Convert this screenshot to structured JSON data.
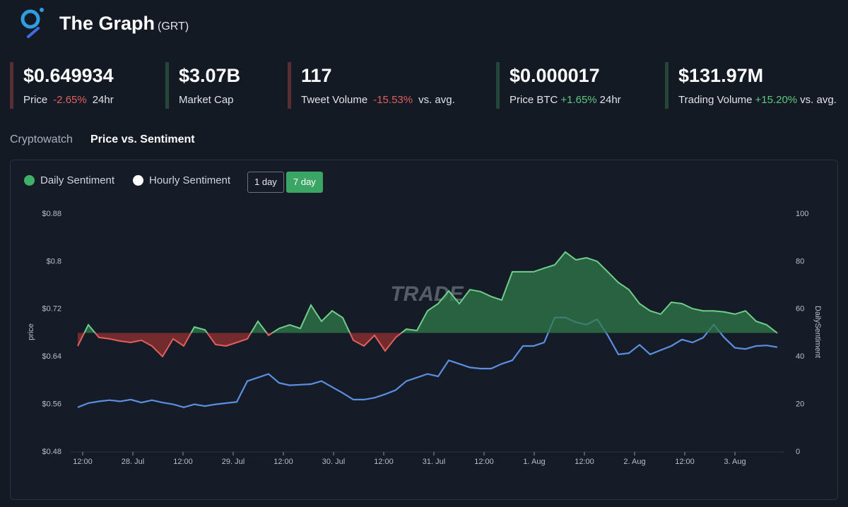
{
  "header": {
    "title": "The Graph",
    "ticker": "(GRT)"
  },
  "stats": [
    {
      "value": "$0.649934",
      "label": "Price",
      "change": "-2.65%",
      "suffix": "24hr",
      "trend": "down"
    },
    {
      "value": "$3.07B",
      "label": "Market Cap",
      "trend": "up"
    },
    {
      "value": "117",
      "label": "Tweet Volume",
      "change": "-15.53%",
      "suffix": "vs. avg.",
      "trend": "down"
    },
    {
      "value": "$0.000017",
      "label": "Price BTC",
      "change": "+1.65%",
      "suffix": "24hr",
      "trend": "up"
    },
    {
      "value": "$131.97M",
      "label": "Trading Volume",
      "change": "+15.20%",
      "suffix": "vs. avg.",
      "trend": "up"
    }
  ],
  "tabs": [
    "Cryptowatch",
    "Price vs. Sentiment"
  ],
  "legend": [
    {
      "name": "Daily Sentiment",
      "color": "#3fb06a"
    },
    {
      "name": "Hourly Sentiment",
      "color": "#ffffff"
    }
  ],
  "range_buttons": [
    "1 day",
    "7 day"
  ],
  "chart_data": {
    "type": "line",
    "watermark": "TRADE",
    "ylabel": "price",
    "y2label": "DailySentiment",
    "xticks": [
      "12:00",
      "28. Jul",
      "12:00",
      "29. Jul",
      "12:00",
      "30. Jul",
      "12:00",
      "31. Jul",
      "12:00",
      "1. Aug",
      "12:00",
      "2. Aug",
      "12:00",
      "3. Aug"
    ],
    "ylim": [
      0.48,
      0.88
    ],
    "yticks": [
      {
        "value": 0.48,
        "label": "$0.48"
      },
      {
        "value": 0.56,
        "label": "$0.56"
      },
      {
        "value": 0.64,
        "label": "$0.64"
      },
      {
        "value": 0.72,
        "label": "$0.72"
      },
      {
        "value": 0.8,
        "label": "$0.8"
      },
      {
        "value": 0.88,
        "label": "$0.88"
      }
    ],
    "y2lim": [
      0,
      100
    ],
    "y2ticks": [
      0,
      20,
      40,
      60,
      80,
      100
    ],
    "series": [
      {
        "color": "#5b8fe0",
        "values": [
          0.555,
          0.562,
          0.565,
          0.567,
          0.565,
          0.568,
          0.563,
          0.567,
          0.563,
          0.56,
          0.555,
          0.56,
          0.557,
          0.56,
          0.562,
          0.564,
          0.599,
          0.605,
          0.611,
          0.596,
          0.592,
          0.593,
          0.594,
          0.599,
          0.589,
          0.579,
          0.568,
          0.568,
          0.571,
          0.577,
          0.584,
          0.599,
          0.605,
          0.611,
          0.607,
          0.634,
          0.628,
          0.622,
          0.62,
          0.62,
          0.628,
          0.634,
          0.658,
          0.658,
          0.664,
          0.706,
          0.706,
          0.698,
          0.694,
          0.703,
          0.676,
          0.644,
          0.646,
          0.66,
          0.644,
          0.651,
          0.658,
          0.669,
          0.664,
          0.672,
          0.694,
          0.672,
          0.655,
          0.653,
          0.658,
          0.659,
          0.656
        ]
      },
      {
        "axis": "y2",
        "color": "#6fcf8a",
        "color_below": "#e0605e",
        "fill": "#2f7a4a",
        "fill_below": "#8c2f2f",
        "values": [
          44.5,
          53.4,
          48.1,
          47.5,
          46.6,
          46.0,
          46.9,
          44.5,
          40.1,
          47.5,
          44.5,
          52.5,
          51.3,
          45.1,
          44.5,
          46.0,
          47.5,
          54.9,
          49.0,
          51.9,
          53.4,
          51.9,
          61.7,
          54.9,
          59.3,
          56.4,
          46.9,
          44.5,
          49.0,
          42.4,
          48.1,
          51.6,
          51.0,
          59.3,
          62.3,
          67.7,
          62.3,
          68.2,
          67.4,
          65.3,
          63.8,
          75.7,
          75.7,
          75.7,
          77.2,
          78.6,
          84.0,
          80.7,
          81.6,
          80.1,
          75.7,
          71.2,
          68.2,
          62.3,
          59.3,
          57.9,
          62.9,
          62.3,
          60.2,
          59.3,
          59.3,
          58.8,
          57.9,
          59.3,
          54.9,
          53.4,
          49.9
        ]
      }
    ]
  }
}
